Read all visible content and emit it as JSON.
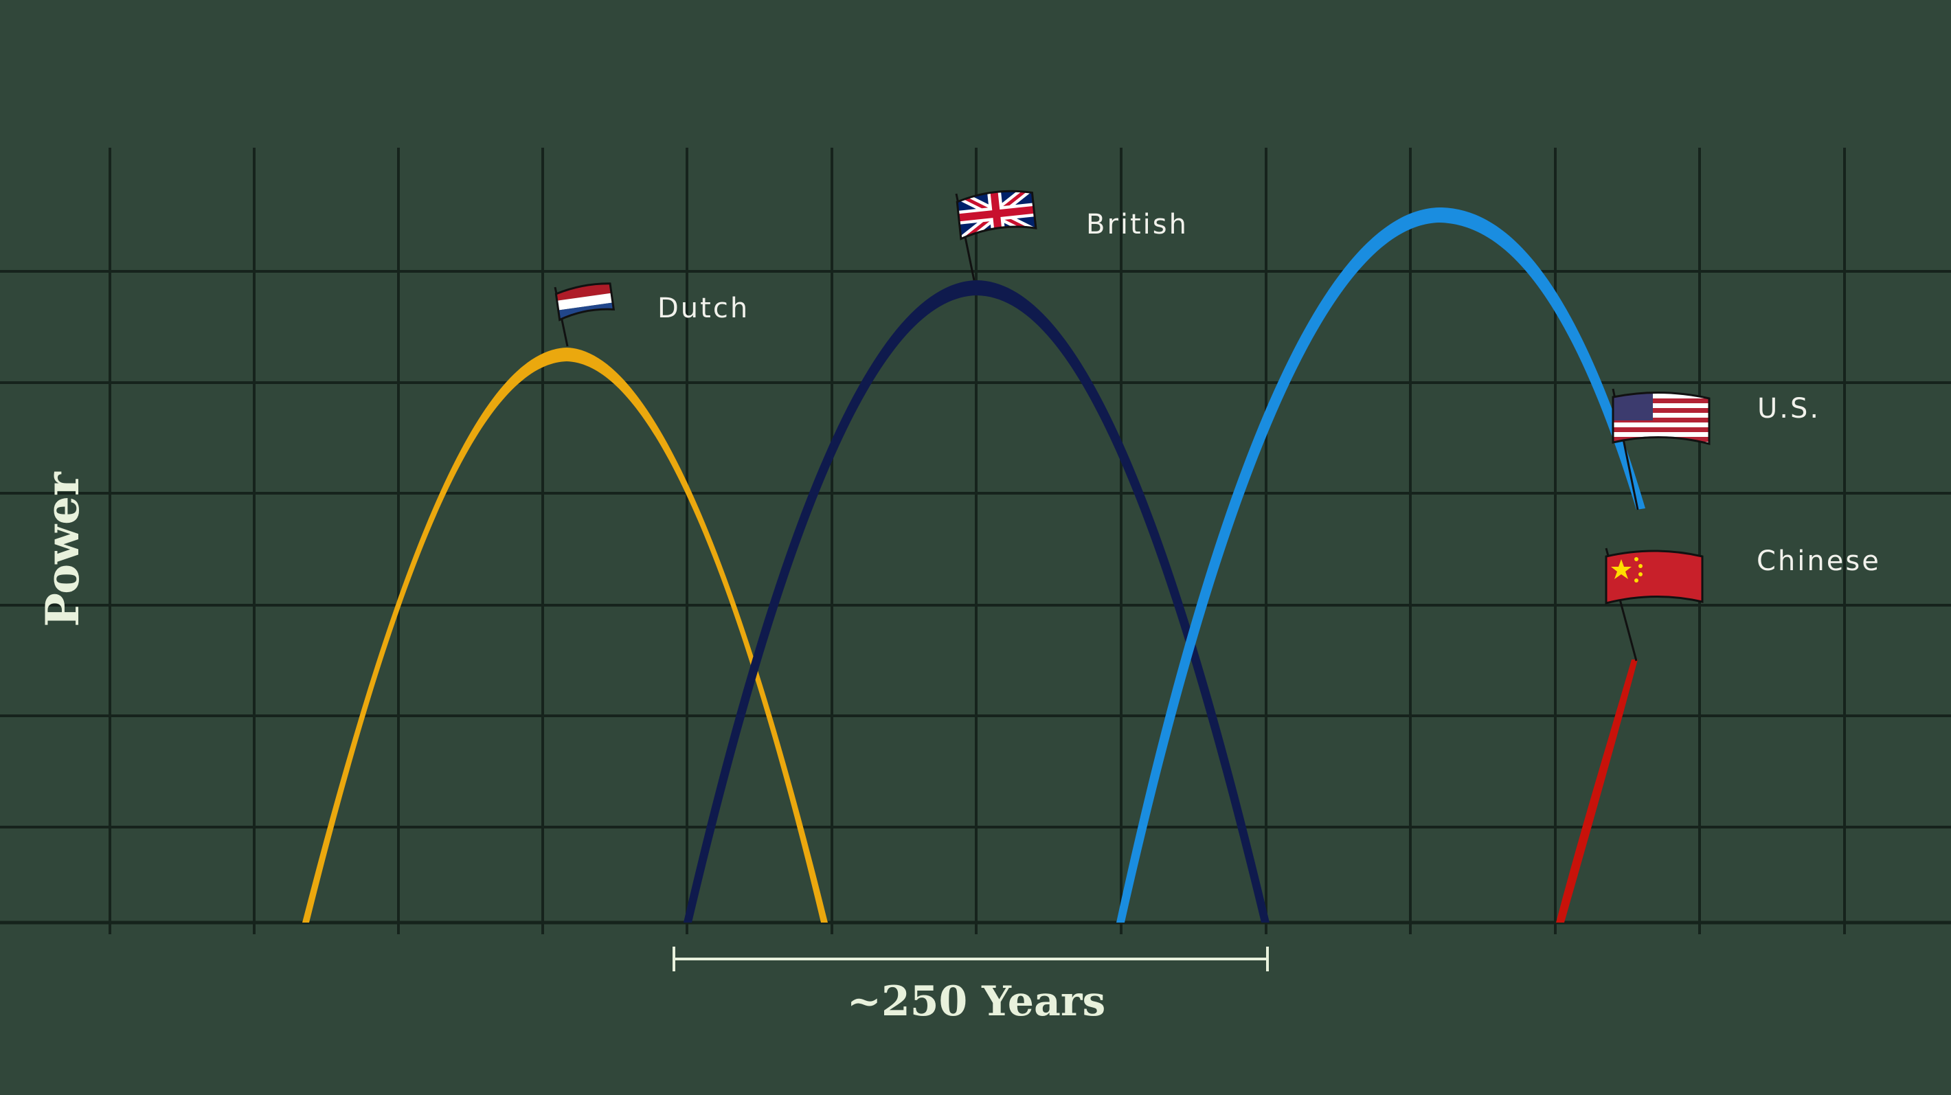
{
  "chart_data": {
    "type": "line",
    "ylabel": "Power",
    "xlabel": "",
    "grid": true,
    "span_annotation": {
      "label": "~250 Years"
    },
    "series": [
      {
        "name": "Dutch",
        "color": "#eba80e",
        "flag": "netherlands-flag-icon"
      },
      {
        "name": "British",
        "color": "#0f1a4d",
        "flag": "uk-flag-icon"
      },
      {
        "name": "U.S.",
        "color": "#1a8de0",
        "flag": "usa-flag-icon"
      },
      {
        "name": "Chinese",
        "color": "#c8120a",
        "flag": "china-flag-icon"
      }
    ]
  },
  "colors": {
    "background": "#31473a",
    "grid": "#16231c",
    "text": "#f2f2ec",
    "axis_title": "#e8f1dc"
  }
}
